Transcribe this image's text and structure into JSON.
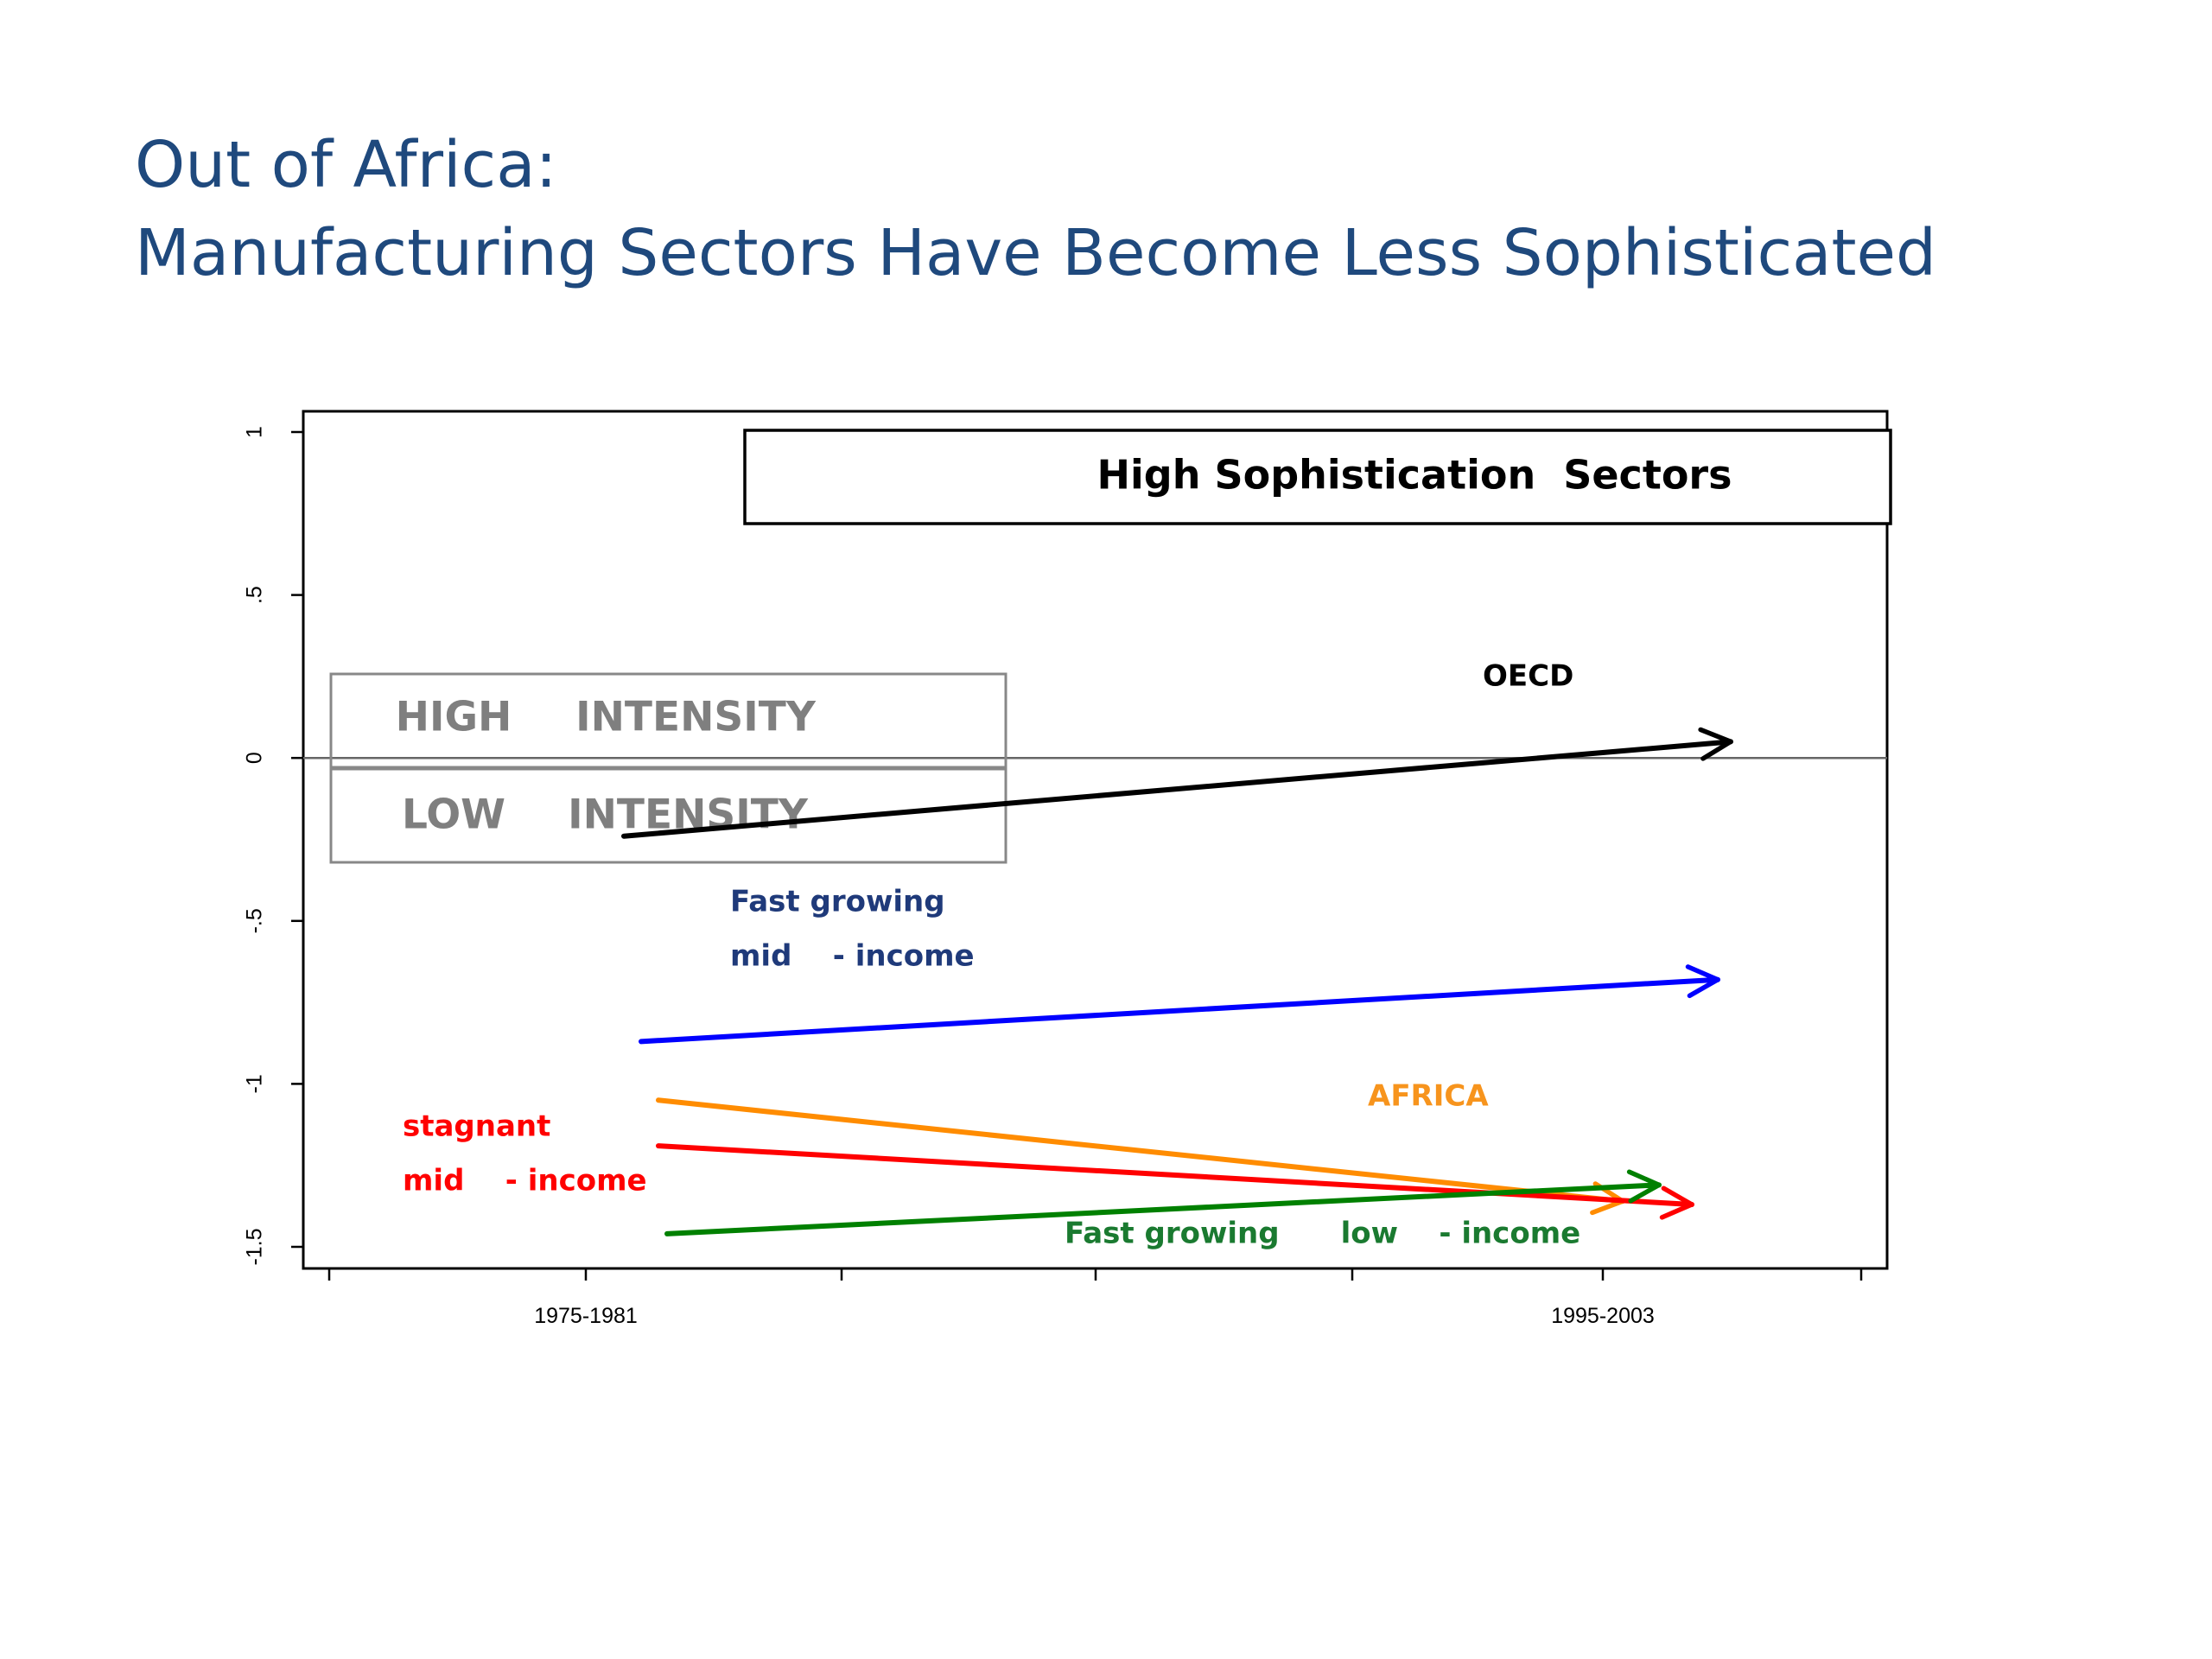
{
  "slide": {
    "title_line1": "Out of Africa:",
    "title_line2": "Manufacturing Sectors Have Become Less Sophisticated"
  },
  "chart_data": {
    "type": "line",
    "title": "High Sophistication  Sectors",
    "x_categories": [
      "1975-1981",
      "1995-2003"
    ],
    "xlim": [
      0,
      1
    ],
    "ylim": [
      -1.6,
      1.05
    ],
    "y_ticks": [
      1,
      0.5,
      0,
      -0.5,
      -1,
      -1.5
    ],
    "y_tick_labels": [
      "1",
      ".5",
      "0",
      "-.5",
      "-1",
      "-1.5"
    ],
    "reference_line_y": 0,
    "grid": false,
    "legend_box": {
      "upper": [
        "HIGH",
        "INTENSITY"
      ],
      "lower": [
        "LOW",
        "INTENSITY"
      ]
    },
    "series": [
      {
        "name": "OECD",
        "label_lines": [
          "OECD"
        ],
        "color": "#000000",
        "x": [
          0.1,
          0.9
        ],
        "y": [
          -0.24,
          0.05
        ]
      },
      {
        "name": "Fast growing mid-income",
        "label_lines": [
          "Fast growing",
          "mid    - income"
        ],
        "color": "#0000ff",
        "label_color": "#1f3a7a",
        "x": [
          0.1,
          0.9
        ],
        "y": [
          -0.87,
          -0.68
        ]
      },
      {
        "name": "AFRICA",
        "label_lines": [
          "AFRICA"
        ],
        "color": "#ff8c00",
        "label_color": "#f7941d",
        "x": [
          0.1,
          0.9
        ],
        "y": [
          -1.05,
          -1.36
        ]
      },
      {
        "name": "stagnant mid-income",
        "label_lines": [
          "stagnant",
          "mid    - income"
        ],
        "color": "#ff0000",
        "x": [
          0.1,
          0.9
        ],
        "y": [
          -1.19,
          -1.37
        ]
      },
      {
        "name": "Fast growing low-income",
        "label_lines": [
          "Fast growing      low    - income"
        ],
        "color": "#008000",
        "label_color": "#1a7a30",
        "x": [
          0.1,
          0.9
        ],
        "y": [
          -1.46,
          -1.31
        ]
      }
    ]
  }
}
